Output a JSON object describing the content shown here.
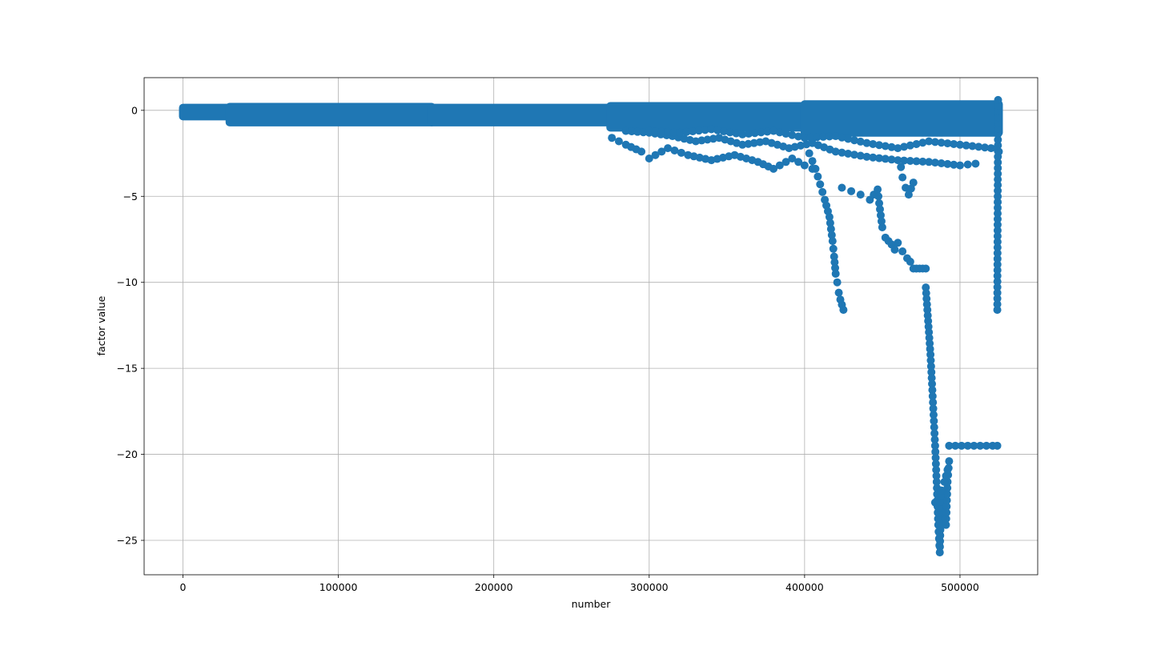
{
  "chart_data": {
    "type": "scatter",
    "title": "",
    "xlabel": "number",
    "ylabel": "factor value",
    "xlim": [
      -25000,
      550000
    ],
    "ylim": [
      -27,
      1.9
    ],
    "xticks": [
      0,
      100000,
      200000,
      300000,
      400000,
      500000
    ],
    "xtick_labels": [
      "0",
      "100000",
      "200000",
      "300000",
      "400000",
      "500000"
    ],
    "yticks": [
      0,
      -5,
      -10,
      -15,
      -20,
      -25
    ],
    "ytick_labels": [
      "0",
      "−5",
      "−10",
      "−15",
      "−20",
      "−25"
    ],
    "grid": true,
    "marker_color": "#1f77b4",
    "bands": [
      {
        "x": [
          0,
          30000
        ],
        "y_top": 0.15,
        "y_bottom": -0.35
      },
      {
        "x": [
          30000,
          160000
        ],
        "y_top": 0.2,
        "y_bottom": -0.7
      },
      {
        "x": [
          160000,
          275000
        ],
        "y_top": 0.15,
        "y_bottom": -0.7
      },
      {
        "x": [
          275000,
          400000
        ],
        "y_top": 0.25,
        "y_bottom": -1.0
      },
      {
        "x": [
          400000,
          525000
        ],
        "y_top": 0.35,
        "y_bottom": -1.3
      }
    ],
    "series": [
      {
        "x": [
          276000,
          285000,
          295000,
          300000,
          312000,
          325000,
          340000,
          355000,
          370000,
          380000,
          392000,
          400000,
          405000
        ],
        "y": [
          -1.6,
          -2.0,
          -2.4,
          -2.8,
          -2.2,
          -2.6,
          -2.9,
          -2.6,
          -3.0,
          -3.4,
          -2.8,
          -3.2,
          -3.4
        ]
      },
      {
        "x": [
          285000,
          300000,
          315000,
          330000,
          345000,
          360000,
          375000,
          390000,
          405000,
          420000,
          440000,
          460000,
          480000,
          500000,
          510000
        ],
        "y": [
          -1.2,
          -1.3,
          -1.5,
          -1.8,
          -1.6,
          -2.0,
          -1.8,
          -2.2,
          -1.9,
          -2.4,
          -2.7,
          -2.9,
          -3.0,
          -3.2,
          -3.1
        ]
      },
      {
        "x": [
          300000,
          320000,
          340000,
          360000,
          380000,
          400000,
          420000,
          440000,
          460000,
          480000,
          500000,
          520000,
          525000
        ],
        "y": [
          -1.2,
          -1.3,
          -1.1,
          -1.4,
          -1.2,
          -1.6,
          -1.5,
          -1.9,
          -2.2,
          -1.8,
          -2.0,
          -2.2,
          -2.4
        ]
      },
      {
        "x": [
          403000,
          407000,
          410000,
          413000,
          416000,
          418000,
          419000,
          420000,
          421000,
          422000,
          423000,
          424000,
          425000
        ],
        "y": [
          -2.5,
          -3.4,
          -4.3,
          -5.2,
          -6.2,
          -7.6,
          -8.5,
          -9.5,
          -10.0,
          -10.6,
          -11.0,
          -11.3,
          -11.6
        ]
      },
      {
        "x": [
          424000,
          430000,
          436000,
          442000,
          447000,
          448000,
          449000,
          450000,
          452000,
          454000,
          456000,
          458000,
          460000,
          463000,
          466000,
          468000,
          470000,
          472000,
          474000,
          476000,
          478000
        ],
        "y": [
          -4.5,
          -4.7,
          -4.9,
          -5.2,
          -4.6,
          -5.4,
          -6.1,
          -6.8,
          -7.4,
          -7.6,
          -7.8,
          -8.1,
          -7.7,
          -8.2,
          -8.6,
          -8.8,
          -9.2,
          -9.2,
          -9.2,
          -9.2,
          -9.2
        ]
      },
      {
        "x": [
          462000,
          463000,
          465000,
          467000,
          470000
        ],
        "y": [
          -3.3,
          -3.9,
          -4.5,
          -4.9,
          -4.2
        ]
      },
      {
        "x": [
          478000,
          479000,
          480000,
          481000,
          482000,
          483000,
          484000,
          485000,
          486000,
          487000,
          488000,
          489000,
          490000,
          491000,
          492000,
          493000
        ],
        "y": [
          -10.3,
          -11.6,
          -12.9,
          -14.2,
          -15.9,
          -17.7,
          -19.5,
          -21.6,
          -24.1,
          -25.7,
          -22.1,
          -22.8,
          -23.4,
          -24.1,
          -21.6,
          -20.4
        ]
      },
      {
        "x": [
          484000,
          486000,
          488000,
          490000,
          492000
        ],
        "y": [
          -22.8,
          -23.4,
          -22.1,
          -21.6,
          -20.9
        ]
      },
      {
        "x": [
          493000,
          497000,
          501000,
          505000,
          509000,
          513000,
          517000,
          521000,
          524000
        ],
        "y": [
          -19.5,
          -19.5,
          -19.5,
          -19.5,
          -19.5,
          -19.5,
          -19.5,
          -19.5,
          -19.5
        ]
      },
      {
        "x": [
          524000,
          524500
        ],
        "y": [
          -11.6,
          0.6
        ]
      }
    ]
  }
}
